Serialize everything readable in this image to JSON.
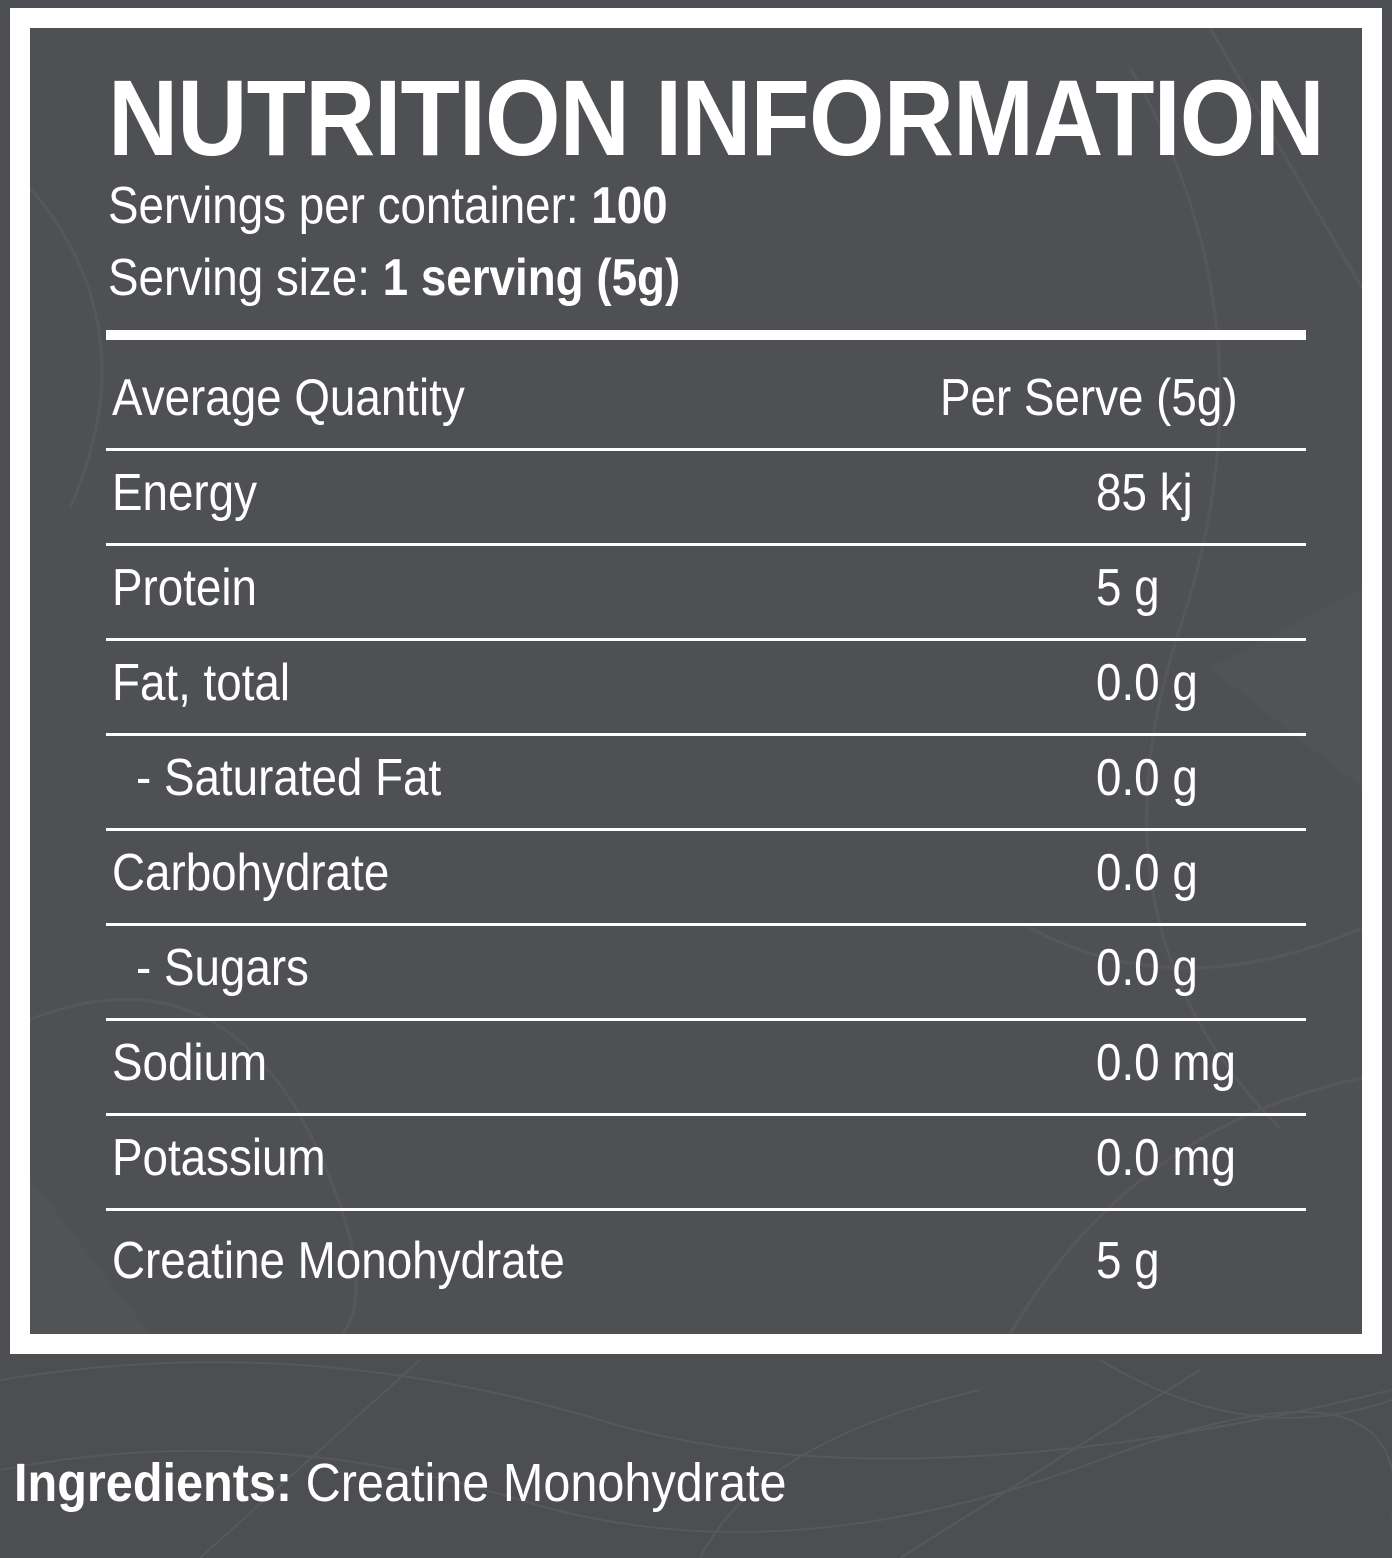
{
  "colors": {
    "background": "#4d4e51",
    "panel": "#4f5053",
    "frame": "#ffffff",
    "text": "#ffffff"
  },
  "panel": {
    "title": "NUTRITION INFORMATION",
    "servings_label": "Servings per container:",
    "servings_value": "100",
    "size_label": "Serving size:",
    "size_value": "1 serving (5g)",
    "table": {
      "header": {
        "label": "Average Quantity",
        "value": "Per Serve (5g)"
      },
      "rows": [
        {
          "label": "Energy",
          "value": "85 kj"
        },
        {
          "label": "Protein",
          "value": "5 g"
        },
        {
          "label": "Fat, total",
          "value": "0.0 g"
        },
        {
          "label": "- Saturated Fat",
          "value": "0.0 g"
        },
        {
          "label": "Carbohydrate",
          "value": "0.0 g"
        },
        {
          "label": "- Sugars",
          "value": "0.0 g"
        },
        {
          "label": "Sodium",
          "value": "0.0 mg"
        },
        {
          "label": "Potassium",
          "value": "0.0 mg"
        },
        {
          "label": "Creatine Monohydrate",
          "value": "5 g"
        }
      ]
    }
  },
  "ingredients": {
    "label": "Ingredients:",
    "value": "Creatine Monohydrate"
  }
}
